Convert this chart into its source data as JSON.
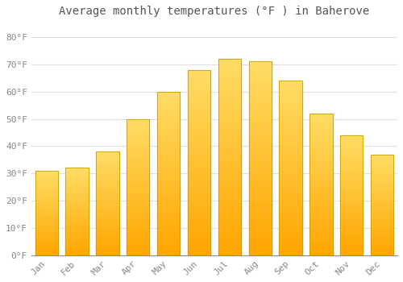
{
  "title": "Average monthly temperatures (°F ) in Baherove",
  "months": [
    "Jan",
    "Feb",
    "Mar",
    "Apr",
    "May",
    "Jun",
    "Jul",
    "Aug",
    "Sep",
    "Oct",
    "Nov",
    "Dec"
  ],
  "values": [
    31,
    32,
    38,
    50,
    60,
    68,
    72,
    71,
    64,
    52,
    44,
    37
  ],
  "bar_color_top": "#FFD966",
  "bar_color_bottom": "#FFA500",
  "bar_edge_color": "#C8A000",
  "background_color": "#FFFFFF",
  "grid_color": "#E0E0E0",
  "ytick_labels": [
    "0°F",
    "10°F",
    "20°F",
    "30°F",
    "40°F",
    "50°F",
    "60°F",
    "70°F",
    "80°F"
  ],
  "ytick_values": [
    0,
    10,
    20,
    30,
    40,
    50,
    60,
    70,
    80
  ],
  "ylim": [
    0,
    85
  ],
  "title_fontsize": 10,
  "tick_fontsize": 8,
  "tick_color": "#888888",
  "bar_width": 0.75
}
